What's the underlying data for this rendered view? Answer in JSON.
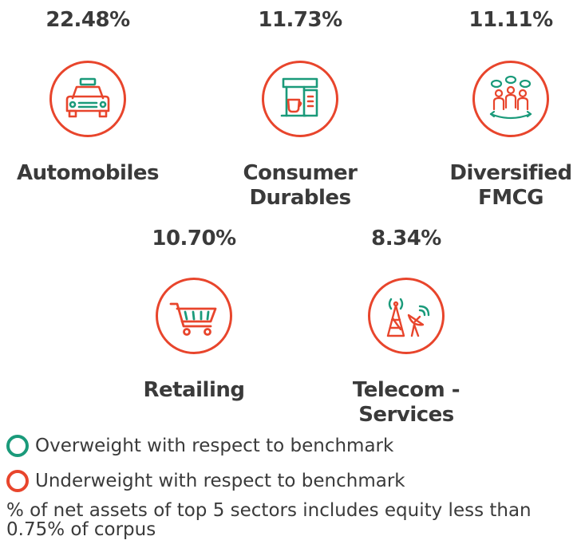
{
  "sectors": [
    {
      "name_line1": "Automobiles",
      "name_line2": "",
      "percent": "22.48%",
      "icon": "car-icon"
    },
    {
      "name_line1": "Consumer",
      "name_line2": "Durables",
      "percent": "11.73%",
      "icon": "coffee-machine-icon"
    },
    {
      "name_line1": "Diversified",
      "name_line2": "FMCG",
      "percent": "11.11%",
      "icon": "consumers-icon"
    },
    {
      "name_line1": "Retailing",
      "name_line2": "",
      "percent": "10.70%",
      "icon": "shopping-cart-icon"
    },
    {
      "name_line1": "Telecom -",
      "name_line2": "Services",
      "percent": "8.34%",
      "icon": "telecom-tower-icon"
    }
  ],
  "legend": {
    "overweight": "Overweight with respect to benchmark",
    "underweight": "Underweight with respect to benchmark"
  },
  "footnote": "% of net assets of top 5 sectors includes equity less than 0.75% of corpus",
  "colors": {
    "underweight": "#e8452c",
    "overweight": "#1a9a7a",
    "text": "#3a3a3a"
  }
}
